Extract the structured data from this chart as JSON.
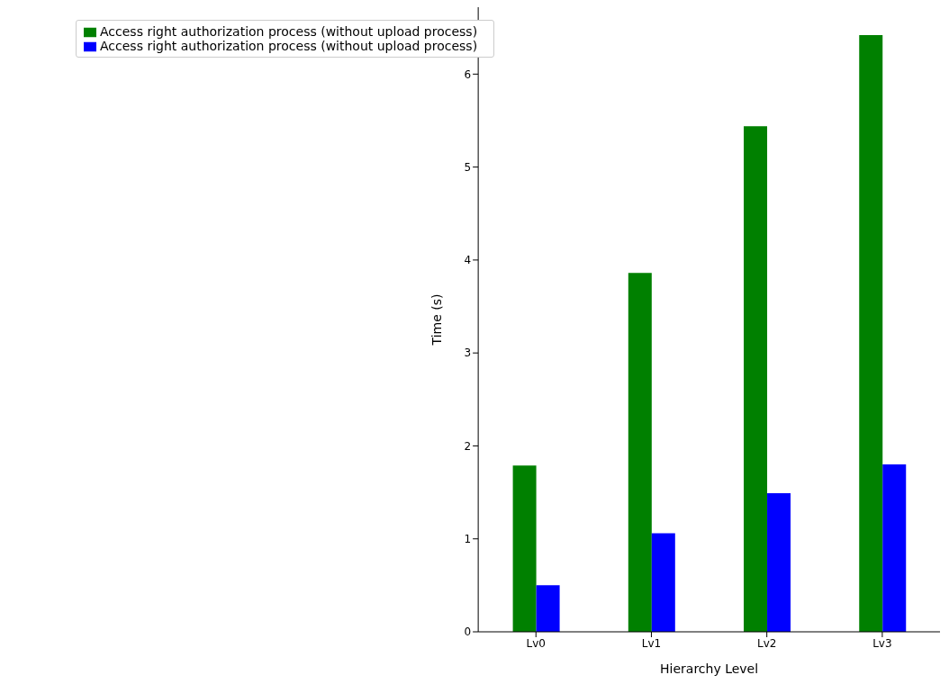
{
  "chart_data": {
    "type": "bar",
    "xlabel": "Hierarchy Level",
    "ylabel": "Time (s)",
    "categories": [
      "Lv0",
      "Lv1",
      "Lv2",
      "Lv3"
    ],
    "series": [
      {
        "name": "Access right authorization process (without upload process)",
        "color": "#008000",
        "values": [
          1.79,
          3.86,
          5.44,
          6.42
        ]
      },
      {
        "name": "Access right authorization process (without upload process)",
        "color": "#0000ff",
        "values": [
          0.5,
          1.06,
          1.49,
          1.8
        ]
      }
    ],
    "ylim": [
      0,
      6.72
    ],
    "yticks": [
      0,
      1,
      2,
      3,
      4,
      5,
      6
    ],
    "grid": false,
    "legend": "top left"
  }
}
